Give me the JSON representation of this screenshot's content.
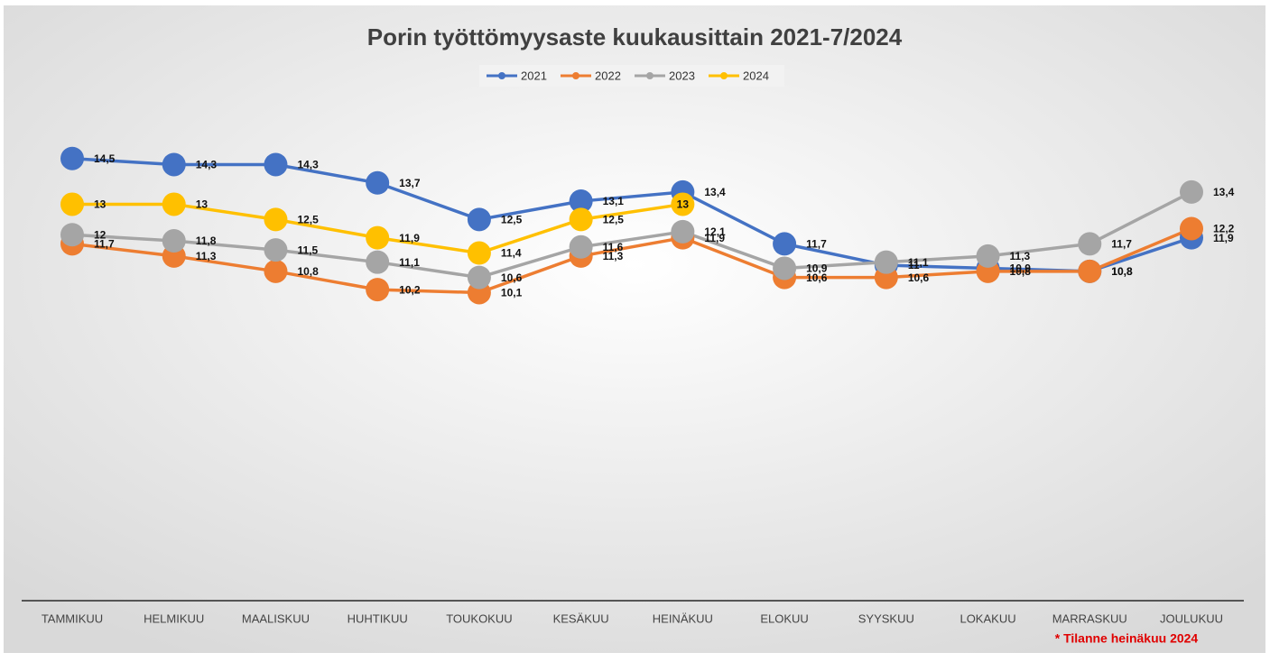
{
  "chart_data": {
    "type": "line",
    "title": "Porin työttömyysaste kuukausittain 2021-7/2024",
    "annotation": "* Tilanne heinäkuu 2024",
    "categories": [
      "TAMMIKUU",
      "HELMIKUU",
      "MAALISKUU",
      "HUHTIKUU",
      "TOUKOKUU",
      "KESÄKUU",
      "HEINÄKUU",
      "ELOKUU",
      "SYYSKUU",
      "LOKAKUU",
      "MARRASKUU",
      "JOULUKUU"
    ],
    "series": [
      {
        "name": "2021",
        "color": "#4472c4",
        "values": [
          14.5,
          14.3,
          14.3,
          13.7,
          12.5,
          13.1,
          13.4,
          11.7,
          11,
          10.9,
          10.8,
          11.9
        ],
        "value_labels": [
          "14,5",
          "14,3",
          "14,3",
          "13,7",
          "12,5",
          "13,1",
          "13,4",
          "11,7",
          "11",
          "10,9",
          "10,8",
          "11,9"
        ]
      },
      {
        "name": "2022",
        "color": "#ed7d31",
        "values": [
          11.7,
          11.3,
          10.8,
          10.2,
          10.1,
          11.3,
          11.9,
          10.6,
          10.6,
          10.8,
          10.8,
          12.2
        ],
        "value_labels": [
          "11,7",
          "11,3",
          "10,8",
          "10,2",
          "10,1",
          "11,3",
          "11,9",
          "10,6",
          "10,6",
          "10,8",
          "10,8",
          "12,2"
        ]
      },
      {
        "name": "2023",
        "color": "#a5a5a5",
        "values": [
          12,
          11.8,
          11.5,
          11.1,
          10.6,
          11.6,
          12.1,
          10.9,
          11.1,
          11.3,
          11.7,
          13.4
        ],
        "value_labels": [
          "12",
          "11,8",
          "11,5",
          "11,1",
          "10,6",
          "11,6",
          "12,1",
          "10,9",
          "11,1",
          "11,3",
          "11,7",
          "13,4"
        ]
      },
      {
        "name": "2024",
        "color": "#ffc000",
        "values": [
          13,
          13,
          12.5,
          11.9,
          11.4,
          12.5,
          13,
          null,
          null,
          null,
          null,
          null
        ],
        "value_labels": [
          "13",
          "13",
          "12,5",
          "11,9",
          "11,4",
          "12,5",
          "13",
          null,
          null,
          null,
          null,
          null
        ]
      }
    ],
    "ylim": [
      0,
      16
    ],
    "legend": "top"
  }
}
